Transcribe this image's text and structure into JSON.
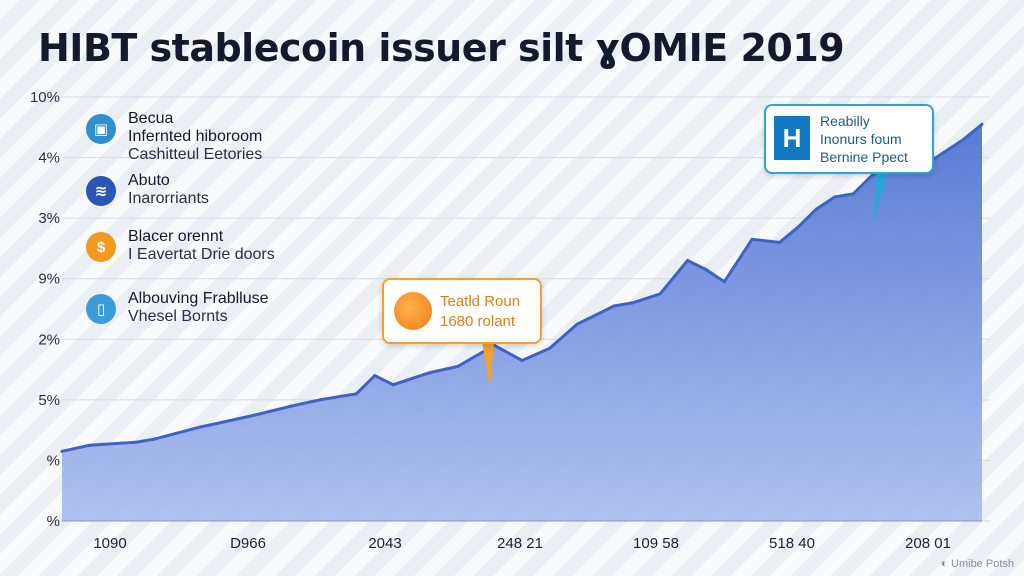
{
  "colors": {
    "area": "#5b80d6",
    "line": "#3f62c8",
    "accent_orange": "#f0a132",
    "accent_blue": "#2aa5d6"
  },
  "chart_data": {
    "type": "area",
    "title": "HIBT stablecoin issuer silt ɣOMIE 2019",
    "xlabel": "",
    "ylabel": "",
    "y_tick_labels": [
      "10%",
      "4%",
      "3%",
      "9%",
      "2%",
      "5%",
      "%",
      "%"
    ],
    "x_tick_labels": [
      "1090",
      "D966",
      "2043",
      "248 21",
      "109 58",
      "518 40",
      "208 01"
    ],
    "ylim": [
      0,
      7
    ],
    "grid": true,
    "series": [
      {
        "x": [
          0,
          0.03,
          0.08,
          0.1,
          0.15,
          0.18,
          0.21,
          0.25,
          0.28,
          0.3,
          0.32,
          0.34,
          0.36,
          0.4,
          0.43,
          0.47,
          0.5,
          0.53,
          0.56,
          0.58,
          0.6,
          0.62,
          0.65,
          0.68,
          0.7,
          0.72,
          0.75,
          0.78,
          0.8,
          0.82,
          0.84,
          0.86,
          0.88,
          0.9,
          0.92,
          0.95,
          0.98,
          1.0
        ],
        "y": [
          1.15,
          1.25,
          1.3,
          1.35,
          1.55,
          1.65,
          1.75,
          1.9,
          2.0,
          2.05,
          2.1,
          2.4,
          2.25,
          2.45,
          2.55,
          2.9,
          2.65,
          2.85,
          3.25,
          3.4,
          3.55,
          3.6,
          3.75,
          4.3,
          4.15,
          3.95,
          4.65,
          4.6,
          4.85,
          5.15,
          5.35,
          5.4,
          5.7,
          5.85,
          5.75,
          6.0,
          6.3,
          6.55
        ]
      }
    ]
  },
  "legend": {
    "items": [
      {
        "icon": "square-badge-icon",
        "color": "#2f8fd0",
        "line1": "Becua",
        "line2": "Infernted hiboroom",
        "line3": "Cashitteul Eetories"
      },
      {
        "icon": "waveform-icon",
        "color": "#2a56b6",
        "line1": "Abuto",
        "line2": "Inarorriants",
        "line3": ""
      },
      {
        "icon": "coin-icon",
        "color": "#f29a1f",
        "line1": "Blacer orennt",
        "line2": "I Eavertat Drie doors",
        "line3": ""
      },
      {
        "icon": "tablet-icon",
        "color": "#3a9ed6",
        "line1": "Albouving Frablluse",
        "line2": "Vhesel Bornts",
        "line3": ""
      }
    ]
  },
  "callouts": {
    "orange": {
      "icon": "coin-badge-icon",
      "line1": "Teatld Roun",
      "line2": "1680 rolant"
    },
    "blue": {
      "badge_letter": "H",
      "line1": "Reabilly",
      "line2": "Inonurs foum",
      "line3": "Bernine Ppect"
    }
  },
  "watermark": {
    "text": "Umibe Potsh"
  }
}
